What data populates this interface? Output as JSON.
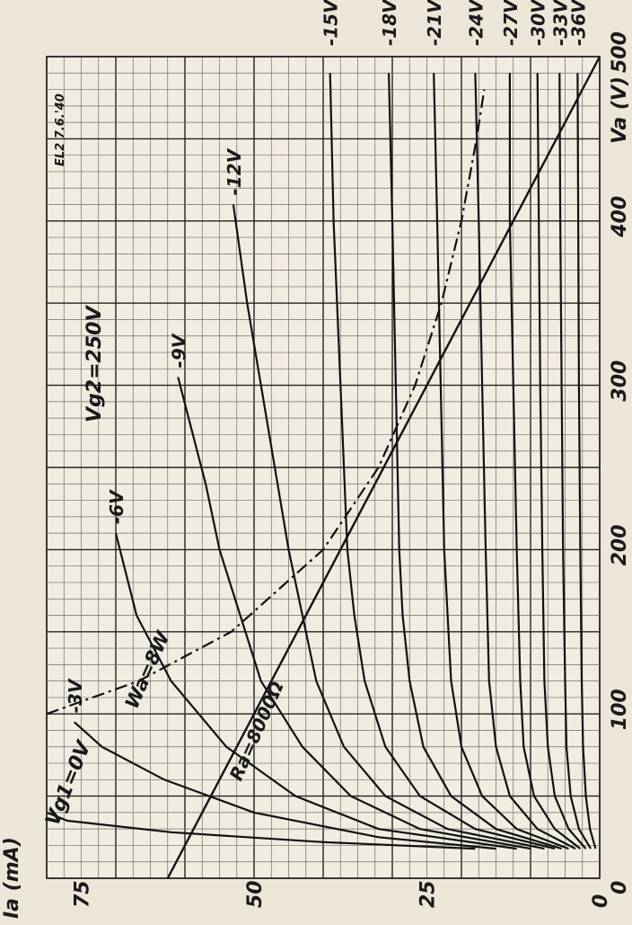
{
  "chart_data": {
    "type": "line",
    "title": "",
    "xlabel": "Va (V)",
    "ylabel": "Ia (mA)",
    "xlim": [
      0,
      500
    ],
    "ylim": [
      0,
      80
    ],
    "grid": true,
    "x_ticks": [
      {
        "value": 0,
        "label": "0"
      },
      {
        "value": 100,
        "label": "100"
      },
      {
        "value": 200,
        "label": "200"
      },
      {
        "value": 300,
        "label": "300"
      },
      {
        "value": 400,
        "label": "400"
      },
      {
        "value": 500,
        "label": "500"
      }
    ],
    "y_ticks": [
      {
        "value": 0,
        "label": "0"
      },
      {
        "value": 25,
        "label": "25"
      },
      {
        "value": 50,
        "label": "50"
      },
      {
        "value": 75,
        "label": "75"
      }
    ],
    "annotations": {
      "screen_voltage": "Vg2=250V",
      "sheet_mark": "EL2 7.6.'40",
      "dissipation": "Wa=8W",
      "load": "Ra=8000Ω",
      "grid_zero": "Vg1=0V"
    },
    "series": [
      {
        "name": "Vg1=0V",
        "style": "solid",
        "points": [
          [
            18,
            18
          ],
          [
            22,
            40
          ],
          [
            28,
            62
          ],
          [
            35,
            77
          ],
          [
            40,
            80
          ]
        ]
      },
      {
        "name": "-3V",
        "style": "solid",
        "points": [
          [
            18,
            15
          ],
          [
            25,
            32
          ],
          [
            40,
            50
          ],
          [
            60,
            63
          ],
          [
            80,
            72
          ],
          [
            95,
            76
          ]
        ]
      },
      {
        "name": "-6V",
        "style": "solid",
        "points": [
          [
            18,
            12
          ],
          [
            30,
            32
          ],
          [
            50,
            44
          ],
          [
            80,
            54
          ],
          [
            120,
            62
          ],
          [
            160,
            67
          ],
          [
            210,
            70
          ]
        ]
      },
      {
        "name": "-9V",
        "style": "solid",
        "points": [
          [
            18,
            10
          ],
          [
            30,
            26
          ],
          [
            50,
            36
          ],
          [
            80,
            43
          ],
          [
            120,
            49
          ],
          [
            160,
            52
          ],
          [
            200,
            55
          ],
          [
            240,
            57
          ],
          [
            305,
            61
          ]
        ]
      },
      {
        "name": "-12V",
        "style": "solid",
        "points": [
          [
            18,
            8
          ],
          [
            30,
            22
          ],
          [
            50,
            31
          ],
          [
            80,
            37
          ],
          [
            120,
            41
          ],
          [
            160,
            43
          ],
          [
            200,
            45
          ],
          [
            250,
            47
          ],
          [
            300,
            49
          ],
          [
            350,
            51
          ],
          [
            410,
            53
          ]
        ]
      },
      {
        "name": "-15V",
        "style": "solid",
        "points": [
          [
            18,
            6.5
          ],
          [
            30,
            18
          ],
          [
            50,
            26
          ],
          [
            80,
            31
          ],
          [
            120,
            34
          ],
          [
            160,
            35.5
          ],
          [
            200,
            36.5
          ],
          [
            300,
            37.5
          ],
          [
            400,
            38.5
          ],
          [
            490,
            39
          ]
        ]
      },
      {
        "name": "-18V",
        "style": "solid",
        "points": [
          [
            18,
            5.5
          ],
          [
            30,
            15
          ],
          [
            50,
            21.5
          ],
          [
            80,
            25.5
          ],
          [
            120,
            27.5
          ],
          [
            160,
            28.5
          ],
          [
            200,
            29
          ],
          [
            300,
            29.5
          ],
          [
            400,
            30
          ],
          [
            490,
            30.5
          ]
        ]
      },
      {
        "name": "-21V",
        "style": "solid",
        "points": [
          [
            18,
            4.5
          ],
          [
            30,
            12
          ],
          [
            50,
            17
          ],
          [
            80,
            20
          ],
          [
            120,
            21.5
          ],
          [
            160,
            22
          ],
          [
            200,
            22.5
          ],
          [
            300,
            23
          ],
          [
            400,
            23.5
          ],
          [
            490,
            24
          ]
        ]
      },
      {
        "name": "-24V",
        "style": "solid",
        "points": [
          [
            18,
            3.5
          ],
          [
            30,
            9
          ],
          [
            50,
            13
          ],
          [
            80,
            15
          ],
          [
            120,
            16
          ],
          [
            200,
            16.5
          ],
          [
            300,
            17
          ],
          [
            400,
            17.5
          ],
          [
            490,
            18
          ]
        ]
      },
      {
        "name": "-27V",
        "style": "solid",
        "points": [
          [
            18,
            2.8
          ],
          [
            30,
            6.5
          ],
          [
            50,
            9.5
          ],
          [
            80,
            11
          ],
          [
            120,
            11.5
          ],
          [
            200,
            12
          ],
          [
            300,
            12.5
          ],
          [
            400,
            13
          ],
          [
            490,
            13
          ]
        ]
      },
      {
        "name": "-30V",
        "style": "solid",
        "points": [
          [
            18,
            2
          ],
          [
            30,
            4.5
          ],
          [
            50,
            6.5
          ],
          [
            80,
            7.5
          ],
          [
            120,
            8
          ],
          [
            200,
            8.3
          ],
          [
            300,
            8.6
          ],
          [
            400,
            8.8
          ],
          [
            490,
            9
          ]
        ]
      },
      {
        "name": "-33V",
        "style": "solid",
        "points": [
          [
            18,
            1.3
          ],
          [
            30,
            3
          ],
          [
            50,
            4.2
          ],
          [
            80,
            4.8
          ],
          [
            120,
            5
          ],
          [
            200,
            5.3
          ],
          [
            300,
            5.5
          ],
          [
            400,
            5.7
          ],
          [
            490,
            5.8
          ]
        ]
      },
      {
        "name": "-36V",
        "style": "solid",
        "points": [
          [
            18,
            0.6
          ],
          [
            30,
            1.4
          ],
          [
            50,
            2
          ],
          [
            80,
            2.4
          ],
          [
            120,
            2.6
          ],
          [
            200,
            2.8
          ],
          [
            300,
            3
          ],
          [
            400,
            3.1
          ],
          [
            490,
            3.2
          ]
        ]
      }
    ],
    "dissipation_curve": {
      "name": "Wa=8W",
      "style": "dash-dot",
      "points": [
        [
          100,
          80
        ],
        [
          120,
          66.7
        ],
        [
          150,
          53.3
        ],
        [
          200,
          40
        ],
        [
          250,
          32
        ],
        [
          300,
          26.7
        ],
        [
          350,
          22.9
        ],
        [
          400,
          20
        ],
        [
          450,
          17.8
        ],
        [
          480,
          16.7
        ]
      ]
    },
    "load_line": {
      "name": "Ra=8000Ω",
      "style": "solid",
      "points": [
        [
          0,
          62.5
        ],
        [
          500,
          0
        ]
      ]
    }
  }
}
